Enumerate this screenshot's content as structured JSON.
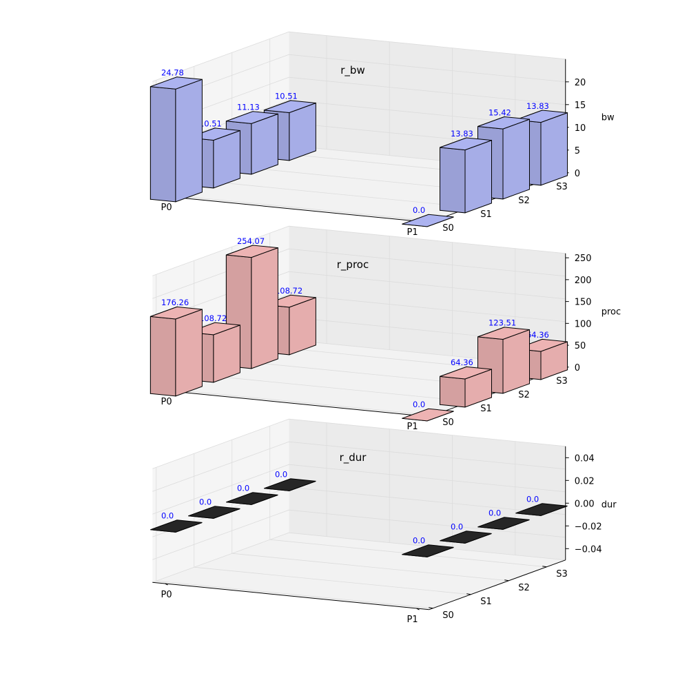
{
  "chart_data": [
    {
      "type": "bar",
      "title": "r_bw",
      "zlabel": "bw",
      "x_categories": [
        "P0",
        "P1"
      ],
      "y_categories": [
        "S0",
        "S1",
        "S2",
        "S3"
      ],
      "zlim": [
        0,
        25
      ],
      "zticks": [
        "0",
        "5",
        "10",
        "15",
        "20"
      ],
      "bar_color": "#9aa0d6",
      "label_color": "#0000ff",
      "bars": [
        {
          "x": "P0",
          "y": "S0",
          "value": 24.78,
          "label": "24.78"
        },
        {
          "x": "P0",
          "y": "S1",
          "value": 10.51,
          "label": "10.51"
        },
        {
          "x": "P0",
          "y": "S2",
          "value": 11.13,
          "label": "11.13"
        },
        {
          "x": "P0",
          "y": "S3",
          "value": 10.51,
          "label": "10.51"
        },
        {
          "x": "P1",
          "y": "S0",
          "value": 0.0,
          "label": "0.0"
        },
        {
          "x": "P1",
          "y": "S1",
          "value": 13.83,
          "label": "13.83"
        },
        {
          "x": "P1",
          "y": "S2",
          "value": 15.42,
          "label": "15.42"
        },
        {
          "x": "P1",
          "y": "S3",
          "value": 13.83,
          "label": "13.83"
        }
      ]
    },
    {
      "type": "bar",
      "title": "r_proc",
      "zlabel": "proc",
      "x_categories": [
        "P0",
        "P1"
      ],
      "y_categories": [
        "S0",
        "S1",
        "S2",
        "S3"
      ],
      "zlim": [
        0,
        260
      ],
      "zticks": [
        "0",
        "50",
        "100",
        "150",
        "200",
        "250"
      ],
      "bar_color": "#d4a0a0",
      "label_color": "#0000ff",
      "bars": [
        {
          "x": "P0",
          "y": "S0",
          "value": 176.26,
          "label": "176.26"
        },
        {
          "x": "P0",
          "y": "S1",
          "value": 108.72,
          "label": "108.72"
        },
        {
          "x": "P0",
          "y": "S2",
          "value": 254.07,
          "label": "254.07"
        },
        {
          "x": "P0",
          "y": "S3",
          "value": 108.72,
          "label": "108.72"
        },
        {
          "x": "P1",
          "y": "S0",
          "value": 0.0,
          "label": "0.0"
        },
        {
          "x": "P1",
          "y": "S1",
          "value": 64.36,
          "label": "64.36"
        },
        {
          "x": "P1",
          "y": "S2",
          "value": 123.51,
          "label": "123.51"
        },
        {
          "x": "P1",
          "y": "S3",
          "value": 64.36,
          "label": "64.36"
        }
      ]
    },
    {
      "type": "bar",
      "title": "r_dur",
      "zlabel": "dur",
      "x_categories": [
        "P0",
        "P1"
      ],
      "y_categories": [
        "S0",
        "S1",
        "S2",
        "S3"
      ],
      "zlim": [
        -0.05,
        0.05
      ],
      "zticks": [
        "−0.04",
        "−0.02",
        "0.00",
        "0.02",
        "0.04"
      ],
      "bar_color": "#222222",
      "label_color": "#0000ff",
      "bars": [
        {
          "x": "P0",
          "y": "S0",
          "value": 0.0,
          "label": "0.0"
        },
        {
          "x": "P0",
          "y": "S1",
          "value": 0.0,
          "label": "0.0"
        },
        {
          "x": "P0",
          "y": "S2",
          "value": 0.0,
          "label": "0.0"
        },
        {
          "x": "P0",
          "y": "S3",
          "value": 0.0,
          "label": "0.0"
        },
        {
          "x": "P1",
          "y": "S0",
          "value": 0.0,
          "label": "0.0"
        },
        {
          "x": "P1",
          "y": "S1",
          "value": 0.0,
          "label": "0.0"
        },
        {
          "x": "P1",
          "y": "S2",
          "value": 0.0,
          "label": "0.0"
        },
        {
          "x": "P1",
          "y": "S3",
          "value": 0.0,
          "label": "0.0"
        }
      ]
    }
  ]
}
